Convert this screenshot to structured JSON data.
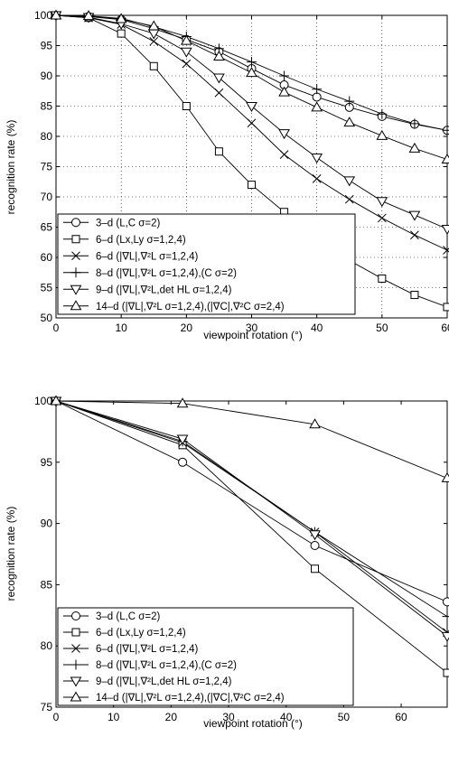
{
  "chart_data": [
    {
      "type": "line",
      "title": "",
      "xlabel": "viewpoint rotation (°)",
      "ylabel": "recognition rate (%)",
      "xlim": [
        0,
        60
      ],
      "ylim": [
        50,
        100
      ],
      "xticks": [
        0,
        10,
        20,
        30,
        40,
        50,
        60
      ],
      "yticks": [
        50,
        55,
        60,
        65,
        70,
        75,
        80,
        85,
        90,
        95,
        100
      ],
      "grid": true,
      "legend_position": "bottom-left",
      "series": [
        {
          "name": "3–d (L,C σ=2)",
          "marker": "circle",
          "x": [
            0,
            5,
            10,
            15,
            20,
            25,
            30,
            35,
            40,
            45,
            50,
            55,
            60
          ],
          "y": [
            100,
            99.8,
            99.3,
            97.8,
            96,
            94,
            91.2,
            88.5,
            86.5,
            84.8,
            83.3,
            82,
            81
          ]
        },
        {
          "name": "6–d (Lx,Ly σ=1,2,4)",
          "marker": "square",
          "x": [
            0,
            5,
            10,
            15,
            20,
            25,
            30,
            35,
            40,
            45,
            50,
            55,
            60
          ],
          "y": [
            100,
            99.6,
            97,
            91.6,
            85,
            77.5,
            72,
            67.5,
            63.5,
            59.5,
            56.5,
            53.8,
            51.8
          ]
        },
        {
          "name": "6–d (|∇L|,∇²L σ=1,2,4)",
          "marker": "x",
          "x": [
            0,
            5,
            10,
            15,
            20,
            25,
            30,
            35,
            40,
            45,
            50,
            55,
            60
          ],
          "y": [
            100,
            99.6,
            98.5,
            95.7,
            92,
            87.2,
            82.2,
            77,
            73,
            69.6,
            66.5,
            63.7,
            61.2
          ]
        },
        {
          "name": "8–d (|∇L|,∇²L σ=1,2,4),(C σ=2)",
          "marker": "plus",
          "x": [
            0,
            5,
            10,
            15,
            20,
            25,
            30,
            35,
            40,
            45,
            50,
            55,
            60
          ],
          "y": [
            100,
            99.9,
            99.5,
            98.1,
            96.5,
            94.5,
            92.3,
            90,
            87.8,
            85.8,
            83.7,
            82.1,
            81
          ]
        },
        {
          "name": "9–d (|∇L|,∇²L,det HL σ=1,2,4)",
          "marker": "triangle-down",
          "x": [
            0,
            5,
            10,
            15,
            20,
            25,
            30,
            35,
            40,
            45,
            50,
            55,
            60
          ],
          "y": [
            100,
            99.7,
            98.6,
            97,
            94,
            89.7,
            85,
            80.5,
            76.5,
            72.7,
            69.3,
            67,
            64.7
          ]
        },
        {
          "name": "14–d (|∇L|,∇²L σ=1,2,4),(|∇C|,∇²C σ=2,4)",
          "marker": "triangle-up",
          "x": [
            0,
            5,
            10,
            15,
            20,
            25,
            30,
            35,
            40,
            45,
            50,
            55,
            60
          ],
          "y": [
            100,
            99.9,
            99.4,
            98.2,
            95.8,
            93.2,
            90.5,
            87.3,
            84.8,
            82.3,
            80.1,
            78,
            76.2
          ]
        }
      ]
    },
    {
      "type": "line",
      "title": "",
      "xlabel": "viewpoint rotation (°)",
      "ylabel": "recognition rate (%)",
      "xlim": [
        0,
        68
      ],
      "ylim": [
        75,
        100
      ],
      "xticks": [
        0,
        10,
        20,
        30,
        40,
        50,
        60
      ],
      "yticks": [
        75,
        80,
        85,
        90,
        95,
        100
      ],
      "grid": false,
      "legend_position": "bottom-left",
      "series": [
        {
          "name": "3–d (L,C σ=2)",
          "marker": "circle",
          "x": [
            0,
            22,
            45,
            68
          ],
          "y": [
            100,
            95,
            88.2,
            83.6
          ]
        },
        {
          "name": "6–d (Lx,Ly σ=1,2,4)",
          "marker": "square",
          "x": [
            0,
            22,
            45,
            68
          ],
          "y": [
            100,
            96.4,
            86.3,
            77.8
          ]
        },
        {
          "name": "6–d (|∇L|,∇²L σ=1,2,4)",
          "marker": "x",
          "x": [
            0,
            22,
            45,
            68
          ],
          "y": [
            100,
            96.6,
            89.3,
            81.1
          ]
        },
        {
          "name": "8–d (|∇L|,∇²L σ=1,2,4),(C σ=2)",
          "marker": "plus",
          "x": [
            0,
            22,
            45,
            68
          ],
          "y": [
            100,
            96.7,
            89.3,
            82.4
          ]
        },
        {
          "name": "9–d (|∇L|,∇²L,det HL σ=1,2,4)",
          "marker": "triangle-down",
          "x": [
            0,
            22,
            45,
            68
          ],
          "y": [
            100,
            96.9,
            89.1,
            80.8
          ]
        },
        {
          "name": "14–d (|∇L|,∇²L σ=1,2,4),(|∇C|,∇²C σ=2,4)",
          "marker": "triangle-up",
          "x": [
            0,
            22,
            45,
            68
          ],
          "y": [
            100,
            99.8,
            98.1,
            93.7
          ]
        }
      ]
    }
  ]
}
